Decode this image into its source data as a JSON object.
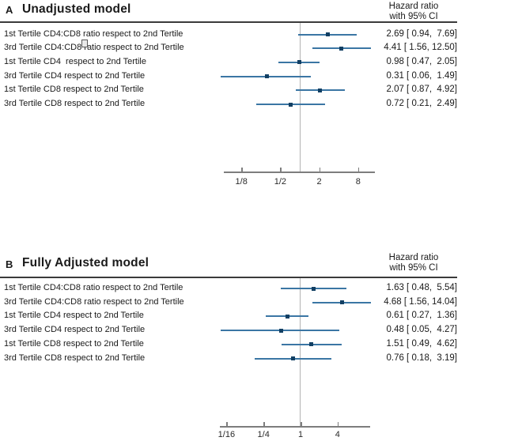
{
  "colors": {
    "ci_line": "#3b76a4",
    "marker": "#123f63",
    "ref_line": "#b3b3b3",
    "axis": "#7d7d7d",
    "header_rule": "#3a3a3a"
  },
  "chart_data": [
    {
      "type": "scatter",
      "subtype": "forest-plot",
      "panel_label": "A",
      "title": "Unadjusted model",
      "col_header_line1": "Hazard ratio",
      "col_header_line2": "with 95% CI",
      "x_scale": "log2",
      "ref_value": 1,
      "x_ticks": [
        {
          "label": "1/8",
          "value": 0.125
        },
        {
          "label": "1/2",
          "value": 0.5
        },
        {
          "label": "2",
          "value": 2
        },
        {
          "label": "8",
          "value": 8
        }
      ],
      "rows": [
        {
          "label": "1st Tertile CD4:CD8 ratio respect to 2nd Tertile",
          "est": 2.69,
          "lo": 0.94,
          "hi": 7.69,
          "display": "2.69 [ 0.94,  7.69]"
        },
        {
          "label": "3rd Tertile CD4:CD8 ratio respect to 2nd Tertile",
          "est": 4.41,
          "lo": 1.56,
          "hi": 12.5,
          "display": "4.41 [ 1.56, 12.50]"
        },
        {
          "label": "1st Tertile CD4  respect to 2nd Tertile",
          "est": 0.98,
          "lo": 0.47,
          "hi": 2.05,
          "display": "0.98 [ 0.47,  2.05]"
        },
        {
          "label": "3rd Tertile CD4 respect to 2nd Tertile",
          "est": 0.31,
          "lo": 0.06,
          "hi": 1.49,
          "display": "0.31 [ 0.06,  1.49]"
        },
        {
          "label": "1st Tertile CD8 respect to 2nd Tertile",
          "est": 2.07,
          "lo": 0.87,
          "hi": 4.92,
          "display": "2.07 [ 0.87,  4.92]"
        },
        {
          "label": "3rd Tertile CD8 respect to 2nd Tertile",
          "est": 0.72,
          "lo": 0.21,
          "hi": 2.49,
          "display": "0.72 [ 0.21,  2.49]"
        }
      ]
    },
    {
      "type": "scatter",
      "subtype": "forest-plot",
      "panel_label": "B",
      "title": "Fully Adjusted model",
      "col_header_line1": "Hazard ratio",
      "col_header_line2": "with 95% CI",
      "x_scale": "log2",
      "ref_value": 1,
      "x_ticks": [
        {
          "label": "1/16",
          "value": 0.0625
        },
        {
          "label": "1/4",
          "value": 0.25
        },
        {
          "label": "1",
          "value": 1
        },
        {
          "label": "4",
          "value": 4
        }
      ],
      "rows": [
        {
          "label": "1st Tertile CD4:CD8 ratio respect to 2nd Tertile",
          "est": 1.63,
          "lo": 0.48,
          "hi": 5.54,
          "display": "1.63 [ 0.48,  5.54]"
        },
        {
          "label": "3rd Tertile CD4:CD8 ratio respect to 2nd Tertile",
          "est": 4.68,
          "lo": 1.56,
          "hi": 14.04,
          "display": "4.68 [ 1.56, 14.04]"
        },
        {
          "label": "1st Tertile CD4 respect to 2nd Tertile",
          "est": 0.61,
          "lo": 0.27,
          "hi": 1.36,
          "display": "0.61 [ 0.27,  1.36]"
        },
        {
          "label": "3rd Tertile CD4 respect to 2nd Tertile",
          "est": 0.48,
          "lo": 0.05,
          "hi": 4.27,
          "display": "0.48 [ 0.05,  4.27]"
        },
        {
          "label": "1st Tertile CD8 respect to 2nd Tertile",
          "est": 1.51,
          "lo": 0.49,
          "hi": 4.62,
          "display": "1.51 [ 0.49,  4.62]"
        },
        {
          "label": "3rd Tertile CD8 respect to 2nd Tertile",
          "est": 0.76,
          "lo": 0.18,
          "hi": 3.19,
          "display": "0.76 [ 0.18,  3.19]"
        }
      ]
    }
  ]
}
